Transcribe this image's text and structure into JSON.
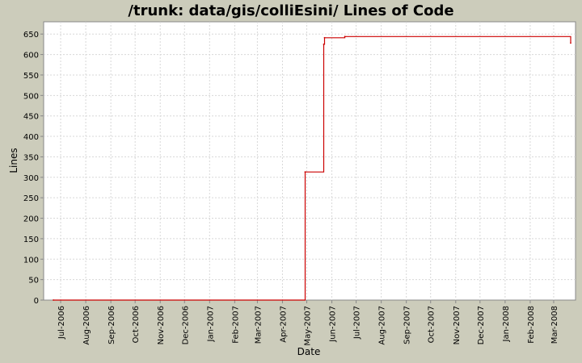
{
  "colors": {
    "background": "#ccccbb",
    "plot_background": "#ffffff",
    "series": "#cc0000",
    "grid": "#d8d8d8",
    "text": "#000000"
  },
  "chart_data": {
    "type": "line",
    "title": "/trunk: data/gis/colliEsini/ Lines of Code",
    "xlabel": "Date",
    "ylabel": "Lines",
    "grid": true,
    "xlim": [
      "2006-06-10",
      "2008-03-28"
    ],
    "ylim": [
      0,
      680
    ],
    "yticks": [
      0,
      50,
      100,
      150,
      200,
      250,
      300,
      350,
      400,
      450,
      500,
      550,
      600,
      650
    ],
    "xticks": [
      {
        "label": "Jul-2006",
        "date": "2006-07-01"
      },
      {
        "label": "Aug-2006",
        "date": "2006-08-01"
      },
      {
        "label": "Sep-2006",
        "date": "2006-09-01"
      },
      {
        "label": "Oct-2006",
        "date": "2006-10-01"
      },
      {
        "label": "Nov-2006",
        "date": "2006-11-01"
      },
      {
        "label": "Dec-2006",
        "date": "2006-12-01"
      },
      {
        "label": "Jan-2007",
        "date": "2007-01-01"
      },
      {
        "label": "Feb-2007",
        "date": "2007-02-01"
      },
      {
        "label": "Mar-2007",
        "date": "2007-03-01"
      },
      {
        "label": "Apr-2007",
        "date": "2007-04-01"
      },
      {
        "label": "May-2007",
        "date": "2007-05-01"
      },
      {
        "label": "Jun-2007",
        "date": "2007-06-01"
      },
      {
        "label": "Jul-2007",
        "date": "2007-07-01"
      },
      {
        "label": "Aug-2007",
        "date": "2007-08-01"
      },
      {
        "label": "Sep-2007",
        "date": "2007-09-01"
      },
      {
        "label": "Oct-2007",
        "date": "2007-10-01"
      },
      {
        "label": "Nov-2007",
        "date": "2007-11-01"
      },
      {
        "label": "Dec-2007",
        "date": "2007-12-01"
      },
      {
        "label": "Jan-2008",
        "date": "2008-01-01"
      },
      {
        "label": "Feb-2008",
        "date": "2008-02-01"
      },
      {
        "label": "Mar-2008",
        "date": "2008-03-01"
      }
    ],
    "series": [
      {
        "step": true,
        "points": [
          {
            "x": "2006-06-22",
            "y": 0
          },
          {
            "x": "2007-04-29",
            "y": 313
          },
          {
            "x": "2007-05-22",
            "y": 625
          },
          {
            "x": "2007-05-23",
            "y": 641
          },
          {
            "x": "2007-06-17",
            "y": 644
          },
          {
            "x": "2008-03-22",
            "y": 628
          }
        ]
      }
    ]
  }
}
